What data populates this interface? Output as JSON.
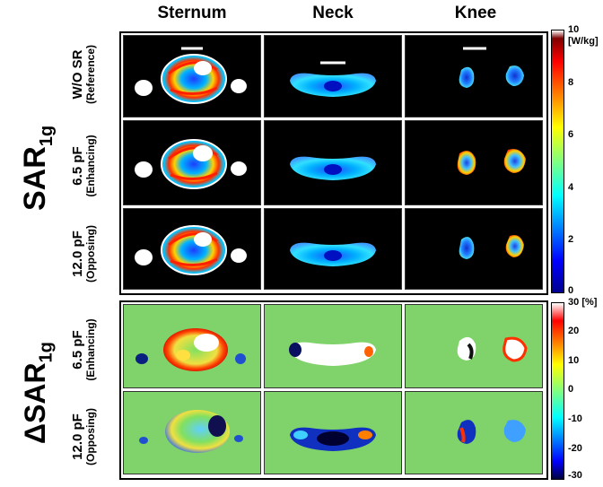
{
  "columns": [
    "Sternum",
    "Neck",
    "Knee"
  ],
  "group_top": {
    "label_main": "SAR",
    "label_sub": "1g"
  },
  "group_bottom": {
    "label_prefix": "Δ",
    "label_main": "SAR",
    "label_sub": "1g"
  },
  "top_rows": [
    {
      "line1": "W/O SR",
      "line2": "(Reference)"
    },
    {
      "line1": "6.5 pF",
      "line2": "(Enhancing)"
    },
    {
      "line1": "12.0 pF",
      "line2": "(Opposing)"
    }
  ],
  "bottom_rows": [
    {
      "line1": "6.5 pF",
      "line2": "(Enhancing)"
    },
    {
      "line1": "12.0 pF",
      "line2": "(Opposing)"
    }
  ],
  "colorbar_top": {
    "unit": "[W/kg]",
    "ticks": [
      "10",
      "8",
      "6",
      "4",
      "2",
      "0"
    ]
  },
  "colorbar_bottom": {
    "unit": "[%]",
    "ticks": [
      "30",
      "20",
      "10",
      "0",
      "-10",
      "-20",
      "-30"
    ]
  },
  "colors": {
    "map_background_top": "#000000",
    "map_background_bottom": "#7fd36a",
    "jet_low": "#00008f",
    "jet_high": "#7f0000"
  }
}
